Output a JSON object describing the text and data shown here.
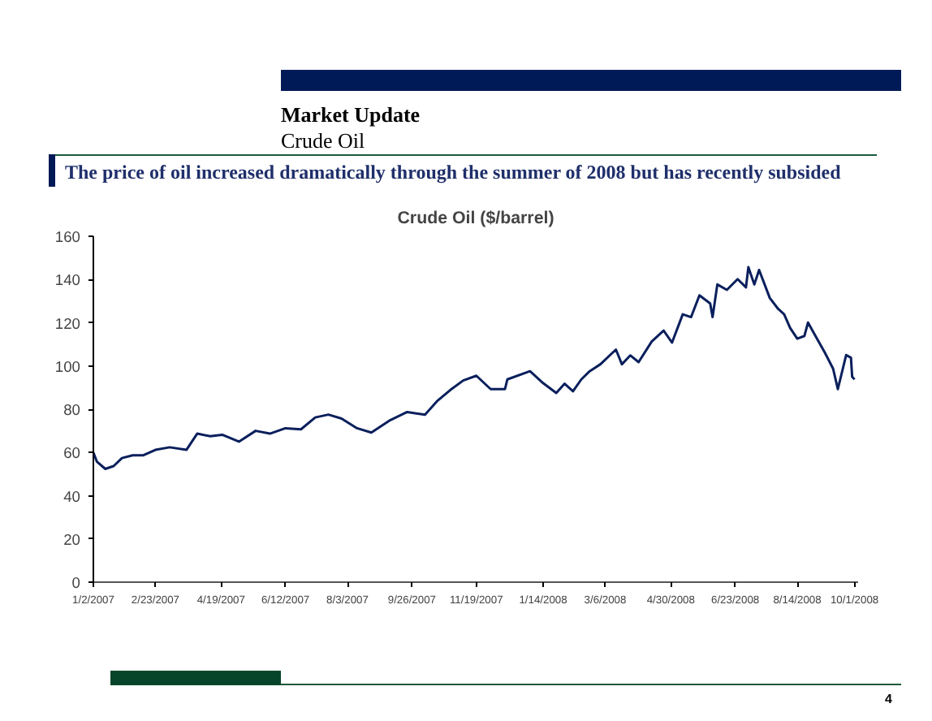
{
  "chart_data": {
    "type": "line",
    "title": "Crude Oil ($/barrel)",
    "subtitle": "The price of oil increased dramatically through the summer of 2008 but has recently subsided",
    "annotations": [
      "Market Update",
      "Crude Oil",
      "4"
    ],
    "x": [
      "2007-01-02",
      "2007-01-05",
      "2007-01-12",
      "2007-01-19",
      "2007-01-26",
      "2007-02-04",
      "2007-02-13",
      "2007-02-23",
      "2007-03-07",
      "2007-03-21",
      "2007-03-30",
      "2007-04-10",
      "2007-04-20",
      "2007-05-04",
      "2007-05-18",
      "2007-05-30",
      "2007-06-12",
      "2007-06-25",
      "2007-07-07",
      "2007-07-18",
      "2007-07-29",
      "2007-08-11",
      "2007-08-23",
      "2007-09-08",
      "2007-09-22",
      "2007-10-07",
      "2007-10-17",
      "2007-10-28",
      "2007-11-08",
      "2007-11-19",
      "2007-12-01",
      "2007-12-13",
      "2007-12-15",
      "2008-01-03",
      "2008-01-13",
      "2008-01-25",
      "2008-02-01",
      "2008-02-08",
      "2008-02-15",
      "2008-02-22",
      "2008-03-02",
      "2008-03-15",
      "2008-03-20",
      "2008-03-27",
      "2008-04-03",
      "2008-04-14",
      "2008-04-24",
      "2008-05-01",
      "2008-05-10",
      "2008-05-17",
      "2008-05-24",
      "2008-06-02",
      "2008-06-04",
      "2008-06-08",
      "2008-06-16",
      "2008-06-25",
      "2008-07-02",
      "2008-07-04",
      "2008-07-09",
      "2008-07-13",
      "2008-07-22",
      "2008-07-29",
      "2008-08-03",
      "2008-08-08",
      "2008-08-14",
      "2008-08-20",
      "2008-08-23",
      "2008-08-28",
      "2008-09-06",
      "2008-09-13",
      "2008-09-17",
      "2008-09-24",
      "2008-09-28",
      "2008-09-29",
      "2008-10-01"
    ],
    "series": [
      {
        "color": "#0a1f5c",
        "values": [
          60,
          55.7,
          52.4,
          53.7,
          57.4,
          58.7,
          58.7,
          61.2,
          62.4,
          61.2,
          68.7,
          67.5,
          68.2,
          65,
          70,
          68.7,
          71.2,
          70.7,
          76.2,
          77.5,
          75.7,
          71.2,
          69.2,
          75,
          78.7,
          77.5,
          83.7,
          88.8,
          93.3,
          95.5,
          89.3,
          89.3,
          93.8,
          97.6,
          92.5,
          87.5,
          91.8,
          88.3,
          93.8,
          97.6,
          100.8,
          107.6,
          100.8,
          104.9,
          101.8,
          111.3,
          116.4,
          110.8,
          123.9,
          122.6,
          132.7,
          128.9,
          122.6,
          137.7,
          135.2,
          140.2,
          136.4,
          145.7,
          137.7,
          144.4,
          131.4,
          126.4,
          123.9,
          117.6,
          112.6,
          113.9,
          120.1,
          115.1,
          106.3,
          98.8,
          89.3,
          105.1,
          103.8,
          95,
          93.8
        ]
      }
    ],
    "xlim": [
      "2007-01-02",
      "2008-10-04"
    ],
    "xticks": [
      {
        "value": "2007-01-02",
        "label": "1/2/2007"
      },
      {
        "value": "2007-02-23",
        "label": "2/23/2007"
      },
      {
        "value": "2007-04-19",
        "label": "4/19/2007"
      },
      {
        "value": "2007-06-12",
        "label": "6/12/2007"
      },
      {
        "value": "2007-08-03",
        "label": "8/3/2007"
      },
      {
        "value": "2007-09-26",
        "label": "9/26/2007"
      },
      {
        "value": "2007-11-19",
        "label": "11/19/2007"
      },
      {
        "value": "2008-01-14",
        "label": "1/14/2008"
      },
      {
        "value": "2008-03-06",
        "label": "3/6/2008"
      },
      {
        "value": "2008-04-30",
        "label": "4/30/2008"
      },
      {
        "value": "2008-06-23",
        "label": "6/23/2008"
      },
      {
        "value": "2008-08-14",
        "label": "8/14/2008"
      },
      {
        "value": "2008-10-01",
        "label": "10/1/2008"
      }
    ],
    "ylim": [
      0,
      160
    ],
    "yticks": [
      0,
      20,
      40,
      60,
      80,
      100,
      120,
      140,
      160
    ],
    "grid": false,
    "line_style": "solid"
  }
}
